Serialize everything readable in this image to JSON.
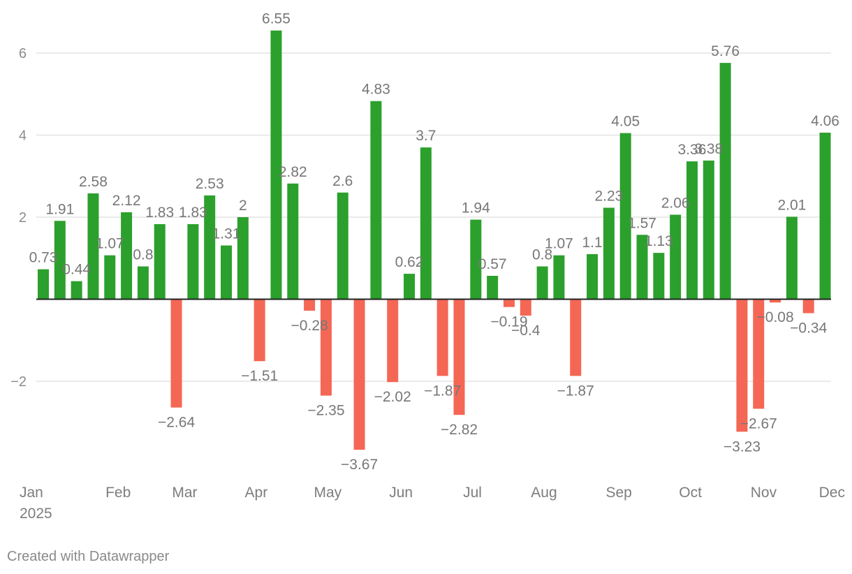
{
  "chart_data": {
    "type": "bar",
    "title": "",
    "xlabel": "",
    "ylabel": "",
    "ylim": [
      -4.3,
      7.2
    ],
    "yticks": [
      6,
      4,
      2,
      -2
    ],
    "ytick_labels": [
      "6",
      "4",
      "2",
      "−2"
    ],
    "x_ticks": [
      {
        "label": "Jan",
        "sublabel": "2025",
        "index": 0
      },
      {
        "label": "Feb",
        "index": 4.5
      },
      {
        "label": "Mar",
        "index": 8.5
      },
      {
        "label": "Apr",
        "index": 12.8
      },
      {
        "label": "May",
        "index": 17.1
      },
      {
        "label": "Jun",
        "index": 21.5
      },
      {
        "label": "Jul",
        "index": 25.8
      },
      {
        "label": "Aug",
        "index": 30.1
      },
      {
        "label": "Sep",
        "index": 34.6
      },
      {
        "label": "Oct",
        "index": 38.9
      },
      {
        "label": "Nov",
        "index": 43.3
      },
      {
        "label": "Dec",
        "index": 47.5
      }
    ],
    "values": [
      0.73,
      1.91,
      0.44,
      2.58,
      1.07,
      2.12,
      0.8,
      1.83,
      -2.64,
      1.83,
      2.53,
      1.31,
      2,
      -1.51,
      6.55,
      2.82,
      -0.28,
      -2.35,
      2.6,
      -3.67,
      4.83,
      -2.02,
      0.62,
      3.7,
      -1.87,
      -2.82,
      1.94,
      0.57,
      -0.19,
      -0.4,
      0.8,
      1.07,
      -1.87,
      1.1,
      2.23,
      4.05,
      1.57,
      1.13,
      2.06,
      3.36,
      3.38,
      5.76,
      -3.23,
      -2.67,
      -0.08,
      2.01,
      -0.34,
      4.06
    ],
    "value_labels": [
      "0.73",
      "1.91",
      "0.44",
      "2.58",
      "1.07",
      "2.12",
      "0.8",
      "1.83",
      "−2.64",
      "1.83",
      "2.53",
      "1.31",
      "2",
      "−1.51",
      "6.55",
      "2.82",
      "−0.28",
      "−2.35",
      "2.6",
      "−3.67",
      "4.83",
      "−2.02",
      "0.62",
      "3.7",
      "−1.87",
      "−2.82",
      "1.94",
      "0.57",
      "−0.19",
      "−0.4",
      "0.8",
      "1.07",
      "−1.87",
      "1.1",
      "2.23",
      "4.05",
      "1.57",
      "1.13",
      "2.06",
      "3.36",
      "3.38",
      "5.76",
      "−3.23",
      "−2.67",
      "−0.08",
      "2.01",
      "−0.34",
      "4.06"
    ],
    "colors": {
      "positive": "#2ca02c",
      "negative": "#f46755",
      "grid": "#e3e3e3",
      "baseline": "#222222"
    }
  },
  "footer": {
    "credit": "Created with Datawrapper"
  }
}
